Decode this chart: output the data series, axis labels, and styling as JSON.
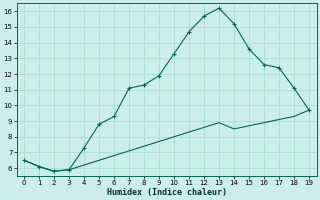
{
  "xlabel": "Humidex (Indice chaleur)",
  "background_color": "#cceee8",
  "grid_color": "#aaddcc",
  "line_color": "#006655",
  "x_upper": [
    0,
    1,
    2,
    3,
    4,
    5,
    6,
    7,
    8,
    9,
    10,
    11,
    12,
    13,
    14,
    15,
    16,
    17,
    18,
    19
  ],
  "y_upper": [
    6.5,
    6.1,
    5.8,
    5.9,
    7.3,
    8.8,
    9.3,
    11.1,
    11.3,
    11.9,
    13.3,
    14.7,
    15.7,
    16.2,
    15.2,
    13.6,
    12.6,
    12.4,
    11.1,
    9.7
  ],
  "x_lower": [
    0,
    1,
    2,
    3,
    4,
    5,
    6,
    7,
    8,
    9,
    10,
    11,
    12,
    13,
    14,
    15,
    16,
    17,
    18,
    19
  ],
  "y_lower": [
    6.5,
    6.1,
    5.8,
    5.9,
    6.2,
    6.5,
    6.8,
    7.1,
    7.4,
    7.7,
    8.0,
    8.3,
    8.6,
    8.9,
    8.5,
    8.7,
    8.9,
    9.1,
    9.3,
    9.7
  ],
  "ylim": [
    5.5,
    16.5
  ],
  "xlim": [
    -0.5,
    19.5
  ],
  "yticks": [
    6,
    7,
    8,
    9,
    10,
    11,
    12,
    13,
    14,
    15,
    16
  ],
  "xticks": [
    0,
    1,
    2,
    3,
    4,
    5,
    6,
    7,
    8,
    9,
    10,
    11,
    12,
    13,
    14,
    15,
    16,
    17,
    18,
    19
  ]
}
